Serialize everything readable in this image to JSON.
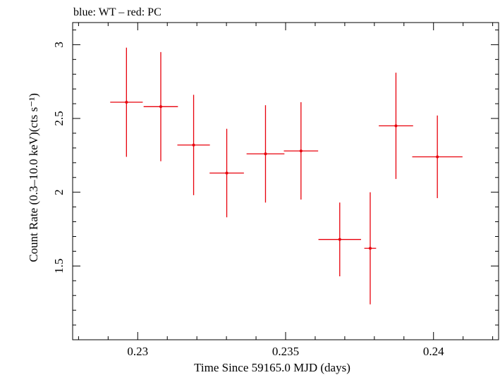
{
  "chart_data": {
    "type": "scatter",
    "title": "blue: WT – red: PC",
    "xlabel": "Time Since 59165.0 MJD (days)",
    "ylabel": "Count Rate (0.3–10.0 keV)(cts s⁻¹)",
    "xlim": [
      0.2278,
      0.2422
    ],
    "ylim": [
      1.0,
      3.15
    ],
    "x_ticks": [
      0.23,
      0.235,
      0.24
    ],
    "x_tick_labels": [
      "0.23",
      "0.235",
      "0.24"
    ],
    "y_ticks": [
      1.5,
      2,
      2.5,
      3
    ],
    "y_tick_labels": [
      "1.5",
      "2",
      "2.5",
      "3"
    ],
    "grid": false,
    "series": [
      {
        "name": "PC",
        "color": "#e8000b",
        "points": [
          {
            "x": 0.22962,
            "y": 2.61,
            "xerr": 0.00055,
            "yerr": 0.37
          },
          {
            "x": 0.23078,
            "y": 2.58,
            "xerr": 0.00058,
            "yerr": 0.37
          },
          {
            "x": 0.23189,
            "y": 2.32,
            "xerr": 0.00055,
            "yerr": 0.34
          },
          {
            "x": 0.23301,
            "y": 2.13,
            "xerr": 0.00058,
            "yerr": 0.3
          },
          {
            "x": 0.23432,
            "y": 2.26,
            "xerr": 0.00064,
            "yerr": 0.33
          },
          {
            "x": 0.23552,
            "y": 2.28,
            "xerr": 0.00058,
            "yerr": 0.33
          },
          {
            "x": 0.23683,
            "y": 1.68,
            "xerr": 0.00072,
            "yerr": 0.25
          },
          {
            "x": 0.23786,
            "y": 1.62,
            "xerr": 0.0002,
            "yerr": 0.38
          },
          {
            "x": 0.23873,
            "y": 2.45,
            "xerr": 0.00058,
            "yerr": 0.36
          },
          {
            "x": 0.24013,
            "y": 2.24,
            "xerr": 0.00085,
            "yerr": 0.28
          }
        ]
      }
    ]
  }
}
